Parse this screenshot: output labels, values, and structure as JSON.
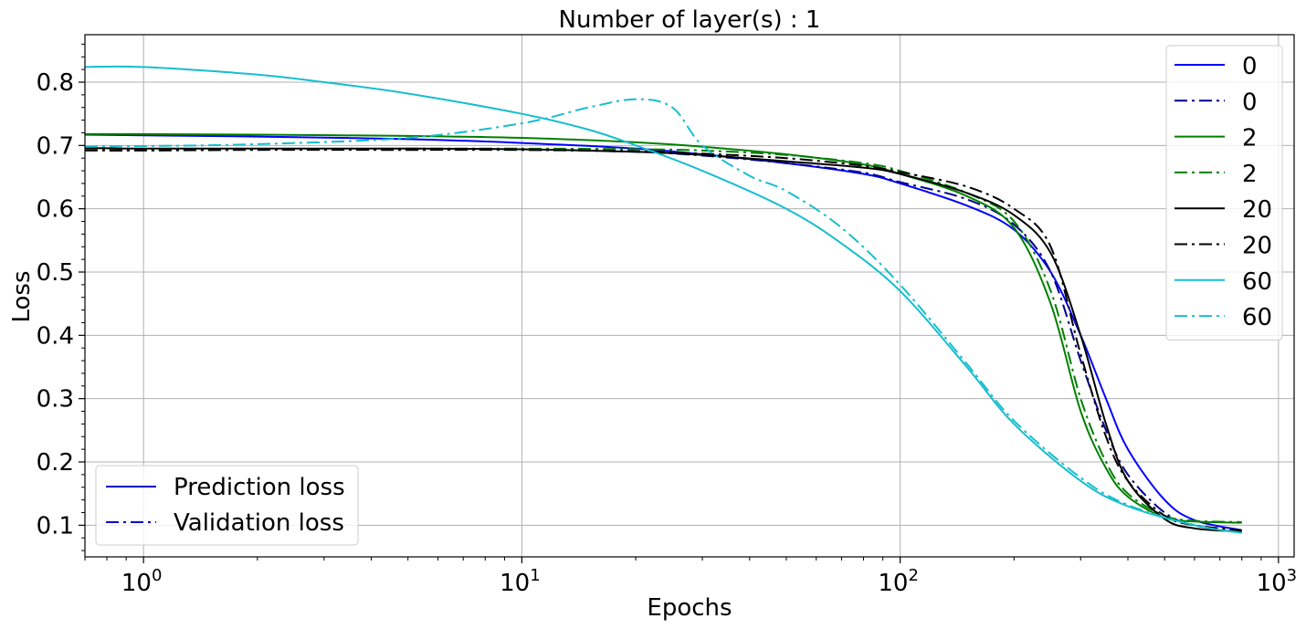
{
  "chart_data": {
    "type": "line",
    "title": "Number of layer(s) : 1",
    "xlabel": "Epochs",
    "ylabel": "Loss",
    "xscale": "log",
    "xlim": [
      0.7,
      1100
    ],
    "ylim": [
      0.05,
      0.875
    ],
    "x_ticks": [
      {
        "value": 1,
        "base": "10",
        "exp": "0"
      },
      {
        "value": 10,
        "base": "10",
        "exp": "1"
      },
      {
        "value": 100,
        "base": "10",
        "exp": "2"
      },
      {
        "value": 1000,
        "base": "10",
        "exp": "3"
      }
    ],
    "y_ticks": [
      {
        "value": 0.1,
        "label": "0.1"
      },
      {
        "value": 0.2,
        "label": "0.2"
      },
      {
        "value": 0.3,
        "label": "0.3"
      },
      {
        "value": 0.4,
        "label": "0.4"
      },
      {
        "value": 0.5,
        "label": "0.5"
      },
      {
        "value": 0.6,
        "label": "0.6"
      },
      {
        "value": 0.7,
        "label": "0.7"
      },
      {
        "value": 0.8,
        "label": "0.8"
      }
    ],
    "grid": true,
    "legend_series_position": "top-right",
    "legend_style_position": "bottom-left",
    "legend_style_entries": [
      {
        "label": "Prediction loss",
        "style": "solid",
        "color": "#0000cc"
      },
      {
        "label": "Validation loss",
        "style": "dashdot",
        "color": "#0000cc"
      }
    ],
    "series": [
      {
        "name": "0",
        "color": "#0000ff",
        "style": "solid",
        "x": [
          0.7,
          1,
          2,
          5,
          10,
          20,
          30,
          50,
          80,
          100,
          150,
          200,
          250,
          300,
          350,
          400,
          500,
          600,
          800
        ],
        "y": [
          0.717,
          0.716,
          0.714,
          0.71,
          0.704,
          0.695,
          0.686,
          0.672,
          0.655,
          0.64,
          0.605,
          0.567,
          0.5,
          0.4,
          0.3,
          0.22,
          0.14,
          0.108,
          0.092
        ]
      },
      {
        "name": "0",
        "color": "#00008b",
        "style": "dashdot",
        "x": [
          0.7,
          1,
          2,
          5,
          10,
          20,
          30,
          50,
          80,
          100,
          150,
          200,
          250,
          300,
          350,
          400,
          500,
          600,
          800
        ],
        "y": [
          0.694,
          0.694,
          0.694,
          0.694,
          0.693,
          0.69,
          0.684,
          0.672,
          0.657,
          0.642,
          0.615,
          0.575,
          0.5,
          0.36,
          0.25,
          0.18,
          0.12,
          0.1,
          0.088
        ]
      },
      {
        "name": "2",
        "color": "#008000",
        "style": "solid",
        "x": [
          0.7,
          1,
          2,
          5,
          10,
          20,
          30,
          50,
          80,
          100,
          150,
          200,
          250,
          300,
          350,
          400,
          500,
          600,
          800
        ],
        "y": [
          0.718,
          0.718,
          0.717,
          0.715,
          0.712,
          0.705,
          0.698,
          0.686,
          0.67,
          0.655,
          0.62,
          0.57,
          0.45,
          0.28,
          0.19,
          0.145,
          0.112,
          0.106,
          0.104
        ]
      },
      {
        "name": "2",
        "color": "#008000",
        "style": "dashdot",
        "x": [
          0.7,
          1,
          2,
          5,
          10,
          20,
          30,
          50,
          80,
          100,
          150,
          200,
          250,
          300,
          350,
          400,
          500,
          600,
          800
        ],
        "y": [
          0.694,
          0.694,
          0.694,
          0.695,
          0.695,
          0.694,
          0.692,
          0.685,
          0.672,
          0.66,
          0.625,
          0.58,
          0.47,
          0.3,
          0.2,
          0.15,
          0.115,
          0.107,
          0.105
        ]
      },
      {
        "name": "20",
        "color": "#000000",
        "style": "solid",
        "x": [
          0.7,
          1,
          2,
          5,
          10,
          20,
          30,
          50,
          80,
          100,
          150,
          200,
          250,
          300,
          350,
          400,
          500,
          600,
          800
        ],
        "y": [
          0.696,
          0.695,
          0.695,
          0.695,
          0.694,
          0.69,
          0.685,
          0.675,
          0.665,
          0.655,
          0.625,
          0.59,
          0.53,
          0.4,
          0.26,
          0.17,
          0.11,
          0.095,
          0.09
        ]
      },
      {
        "name": "20",
        "color": "#000000",
        "style": "dashdot",
        "x": [
          0.7,
          1,
          2,
          5,
          10,
          20,
          30,
          50,
          80,
          100,
          150,
          200,
          250,
          300,
          350,
          400,
          500,
          600,
          800
        ],
        "y": [
          0.692,
          0.692,
          0.693,
          0.693,
          0.693,
          0.691,
          0.687,
          0.68,
          0.668,
          0.658,
          0.635,
          0.6,
          0.54,
          0.37,
          0.24,
          0.17,
          0.115,
          0.1,
          0.092
        ]
      },
      {
        "name": "60",
        "color": "#17becf",
        "style": "solid",
        "x": [
          0.7,
          1,
          2,
          3,
          5,
          10,
          15,
          20,
          30,
          50,
          70,
          100,
          150,
          200,
          300,
          400,
          600,
          800
        ],
        "y": [
          0.824,
          0.824,
          0.812,
          0.8,
          0.782,
          0.75,
          0.725,
          0.7,
          0.66,
          0.6,
          0.545,
          0.47,
          0.35,
          0.26,
          0.17,
          0.13,
          0.1,
          0.088
        ]
      },
      {
        "name": "60",
        "color": "#17becf",
        "style": "dashdot",
        "x": [
          0.7,
          1,
          2,
          5,
          10,
          15,
          20,
          25,
          30,
          40,
          50,
          70,
          100,
          150,
          200,
          300,
          400,
          600,
          800
        ],
        "y": [
          0.698,
          0.699,
          0.702,
          0.712,
          0.735,
          0.76,
          0.773,
          0.76,
          0.7,
          0.652,
          0.628,
          0.57,
          0.48,
          0.355,
          0.265,
          0.175,
          0.132,
          0.1,
          0.088
        ]
      }
    ]
  }
}
